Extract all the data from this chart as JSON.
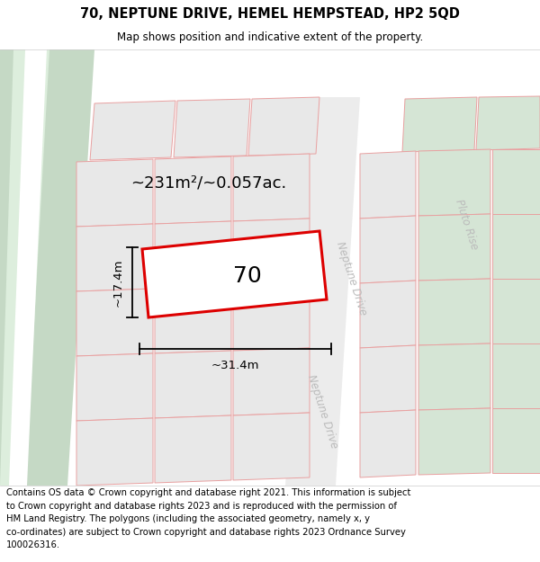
{
  "title": "70, NEPTUNE DRIVE, HEMEL HEMPSTEAD, HP2 5QD",
  "subtitle": "Map shows position and indicative extent of the property.",
  "footer": "Contains OS data © Crown copyright and database right 2021. This information is subject\nto Crown copyright and database rights 2023 and is reproduced with the permission of\nHM Land Registry. The polygons (including the associated geometry, namely x, y\nco-ordinates) are subject to Crown copyright and database rights 2023 Ordnance Survey\n100026316.",
  "area_label": "~231m²/~0.057ac.",
  "width_label": "~31.4m",
  "height_label": "~17.4m",
  "plot_number": "70",
  "bg_map": "#f2f2f2",
  "green_strip_dark": "#c5d9c5",
  "green_strip_light": "#ddeedd",
  "white_road": "#ffffff",
  "block_fill_grey": "#e8e8e8",
  "block_fill_green": "#d5e5d5",
  "block_edge_pink": "#e8a0a0",
  "highlight_red": "#dd0000",
  "dim_color": "#111111",
  "street_color": "#bbbbbb",
  "title_fontsize": 10.5,
  "subtitle_fontsize": 8.5,
  "footer_fontsize": 7.2,
  "area_fontsize": 13,
  "plot_label_fontsize": 18,
  "dim_fontsize": 9.5,
  "street_fontsize": 8.5
}
